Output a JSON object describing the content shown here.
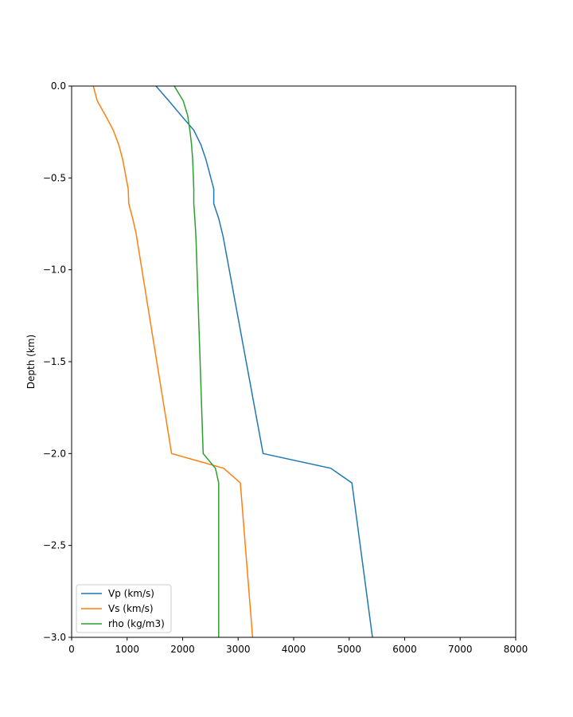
{
  "chart_data": {
    "type": "line",
    "title": "",
    "xlabel": "",
    "ylabel": "Depth (km)",
    "xlim": [
      0,
      8000
    ],
    "ylim": [
      -3.0,
      0.0
    ],
    "xticks": [
      0,
      1000,
      2000,
      3000,
      4000,
      5000,
      6000,
      7000,
      8000
    ],
    "xtick_labels": [
      "0",
      "1000",
      "2000",
      "3000",
      "4000",
      "5000",
      "6000",
      "7000",
      "8000"
    ],
    "yticks": [
      0.0,
      -0.5,
      -1.0,
      -1.5,
      -2.0,
      -2.5,
      -3.0
    ],
    "ytick_labels": [
      "0.0",
      "−0.5",
      "−1.0",
      "−1.5",
      "−2.0",
      "−2.5",
      "−3.0"
    ],
    "grid": false,
    "legend_position": "lower-left",
    "series": [
      {
        "name": "Vp (km/s)",
        "color": "#1f77b4",
        "points": [
          [
            1520,
            0.0
          ],
          [
            1750,
            -0.08
          ],
          [
            2000,
            -0.17
          ],
          [
            2200,
            -0.24
          ],
          [
            2330,
            -0.32
          ],
          [
            2420,
            -0.4
          ],
          [
            2560,
            -0.56
          ],
          [
            2560,
            -0.64
          ],
          [
            2650,
            -0.72
          ],
          [
            2730,
            -0.82
          ],
          [
            3450,
            -2.0
          ],
          [
            4670,
            -2.08
          ],
          [
            5050,
            -2.16
          ],
          [
            5420,
            -3.0
          ]
        ]
      },
      {
        "name": "Vs (km/s)",
        "color": "#ff7f0e",
        "points": [
          [
            390,
            0.0
          ],
          [
            460,
            -0.08
          ],
          [
            610,
            -0.16
          ],
          [
            750,
            -0.24
          ],
          [
            850,
            -0.32
          ],
          [
            920,
            -0.4
          ],
          [
            1020,
            -0.56
          ],
          [
            1030,
            -0.64
          ],
          [
            1100,
            -0.72
          ],
          [
            1160,
            -0.8
          ],
          [
            1800,
            -2.0
          ],
          [
            2740,
            -2.08
          ],
          [
            3040,
            -2.16
          ],
          [
            3260,
            -3.0
          ]
        ]
      },
      {
        "name": "rho (kg/m3)",
        "color": "#2ca02c",
        "points": [
          [
            1850,
            0.0
          ],
          [
            2010,
            -0.08
          ],
          [
            2090,
            -0.16
          ],
          [
            2130,
            -0.24
          ],
          [
            2160,
            -0.32
          ],
          [
            2180,
            -0.4
          ],
          [
            2200,
            -0.56
          ],
          [
            2200,
            -0.64
          ],
          [
            2220,
            -0.72
          ],
          [
            2240,
            -0.82
          ],
          [
            2370,
            -2.0
          ],
          [
            2590,
            -2.08
          ],
          [
            2650,
            -2.16
          ],
          [
            2650,
            -3.0
          ]
        ]
      }
    ]
  }
}
